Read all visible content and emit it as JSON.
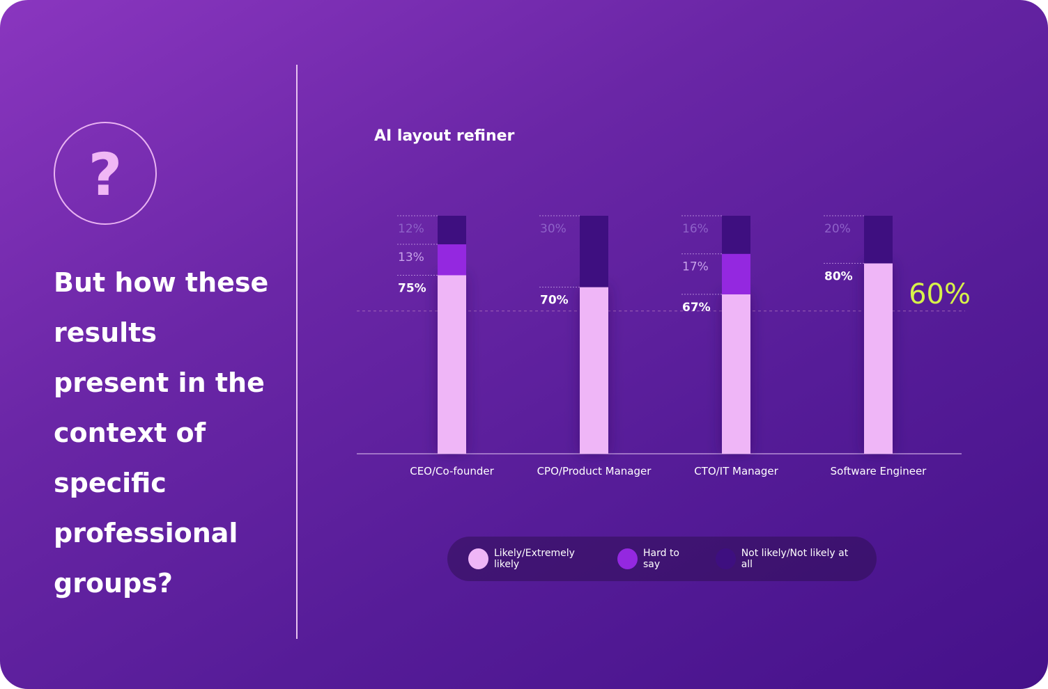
{
  "question_icon": "question-mark-icon",
  "headline": "But how these results present in the context of specific professional groups?",
  "chart_title": "AI layout refiner",
  "legend": [
    {
      "label": "Likely/Extremely likely",
      "color": "#efb6f7"
    },
    {
      "label": "Hard to say",
      "color": "#9428e0"
    },
    {
      "label": "Not likely/Not likely at all",
      "color": "#3e0f80"
    }
  ],
  "chart_data": {
    "type": "bar",
    "stacked": true,
    "title": "AI layout refiner",
    "categories": [
      "CEO/Co-founder",
      "CPO/Product Manager",
      "CTO/IT Manager",
      "Software Engineer"
    ],
    "series": [
      {
        "name": "Likely/Extremely likely",
        "values": [
          75,
          70,
          67,
          80
        ],
        "labels": [
          "75%",
          "70%",
          "67%",
          "80%"
        ],
        "color": "#efb6f7"
      },
      {
        "name": "Hard to say",
        "values": [
          13,
          0,
          17,
          0
        ],
        "labels": [
          "13%",
          "",
          "17%",
          ""
        ],
        "color": "#9428e0"
      },
      {
        "name": "Not likely/Not likely at all",
        "values": [
          12,
          30,
          16,
          20
        ],
        "labels": [
          "12%",
          "30%",
          "16%",
          "20%"
        ],
        "color": "#3e0f80"
      }
    ],
    "reference_line": {
      "value": 60,
      "label": "60%",
      "color": "#d7f24a"
    },
    "ylim": [
      0,
      100
    ],
    "grid": false,
    "legend_position": "bottom"
  }
}
